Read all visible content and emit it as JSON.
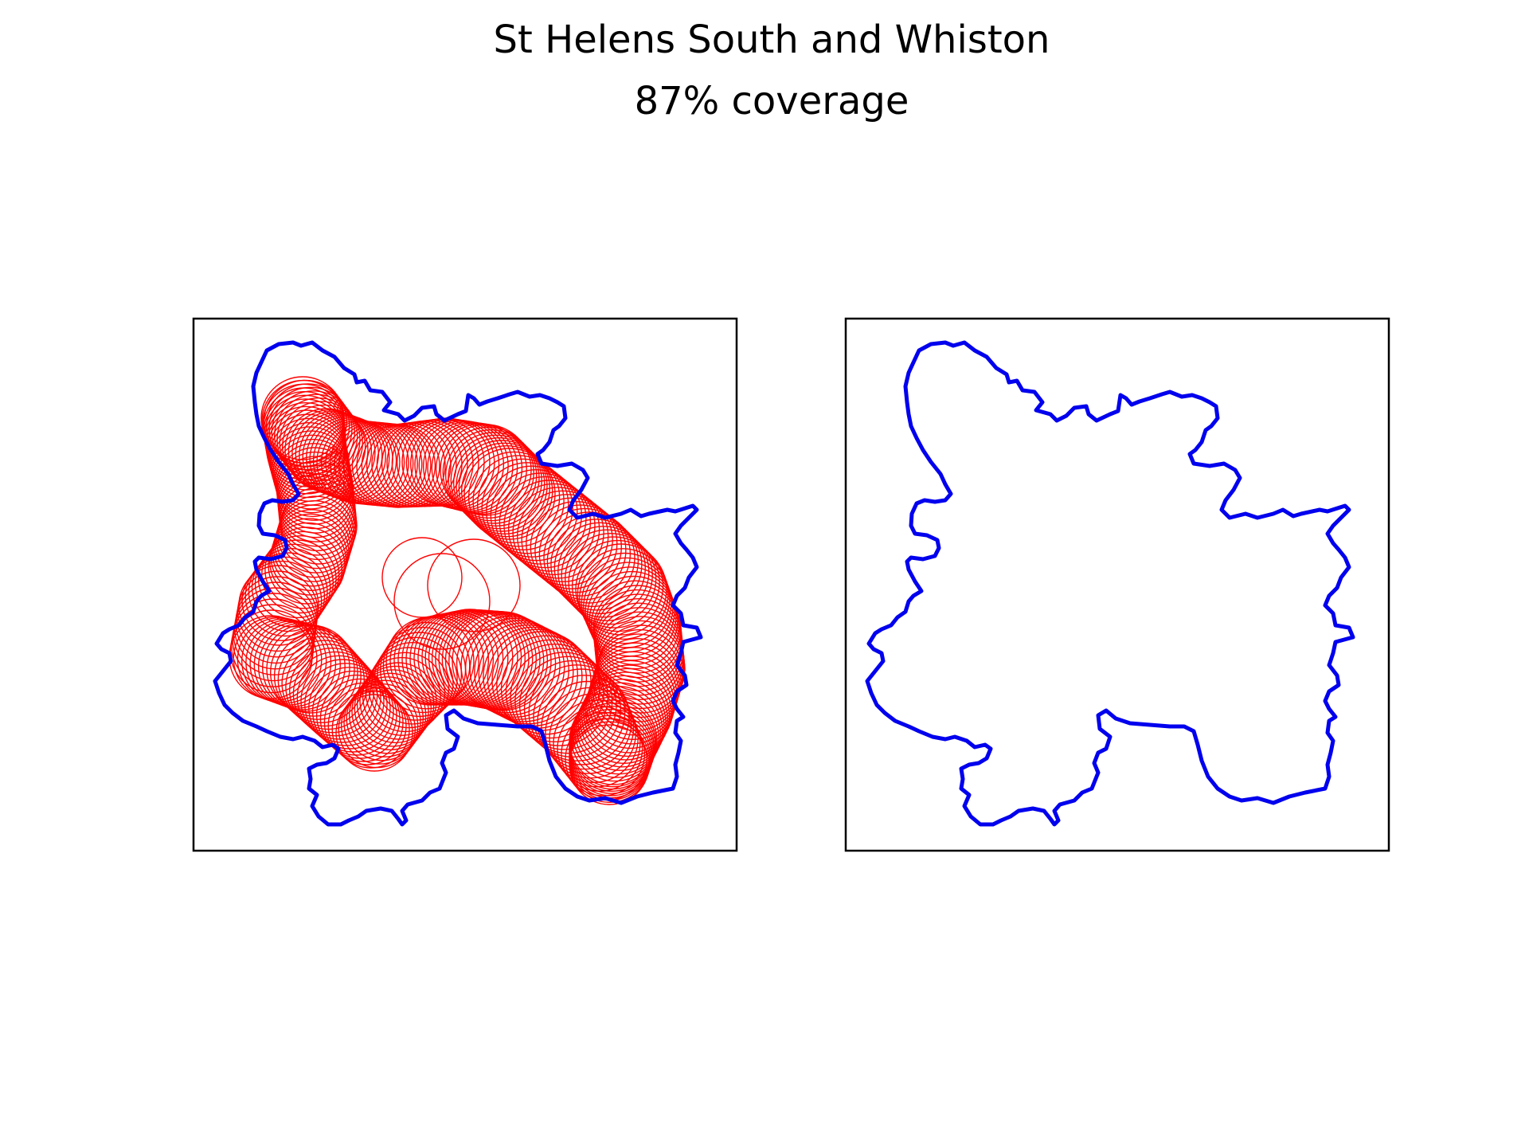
{
  "figure": {
    "title": "St Helens South and Whiston",
    "subtitle": "87% coverage"
  },
  "colors": {
    "boundary": "#0000ee",
    "coverage": "#ff0000",
    "frame": "#000000",
    "background": "#ffffff"
  },
  "panels": [
    {
      "style": "circle-outlines"
    },
    {
      "style": "filled-union"
    }
  ]
}
